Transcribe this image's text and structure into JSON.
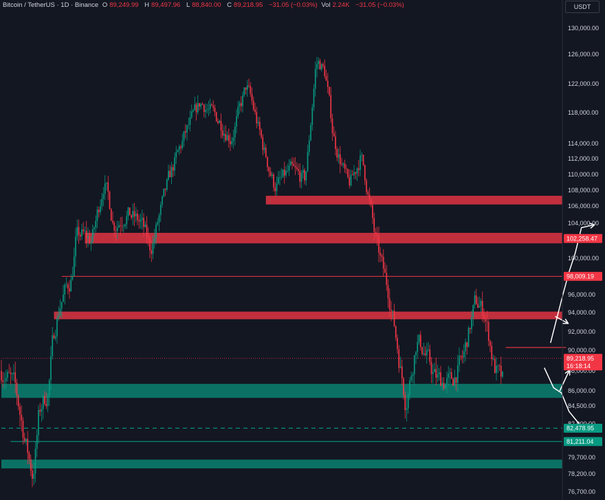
{
  "header": {
    "title": "Bitcoin / TetherUS · 1D · Binance",
    "o_label": "O",
    "o": "89,249.99",
    "h_label": "H",
    "h": "89,497.96",
    "l_label": "L",
    "l": "88,840.00",
    "c_label": "C",
    "c": "89,218.95",
    "change": "−31.05 (−0.03%)",
    "vol_label": "Vol",
    "vol": "2.24K",
    "vol_change": "−31.05 (−0.03%)"
  },
  "currency_button": "USDT",
  "chart_data": {
    "type": "candlestick",
    "title": "Bitcoin / TetherUS · 1D · Binance",
    "y_ticks": [
      {
        "label": "130,000.00",
        "value": 130000
      },
      {
        "label": "126,000.00",
        "value": 126000
      },
      {
        "label": "122,000.00",
        "value": 122000
      },
      {
        "label": "118,000.00",
        "value": 118000
      },
      {
        "label": "114,000.00",
        "value": 114000
      },
      {
        "label": "112,000.00",
        "value": 112000
      },
      {
        "label": "110,000.00",
        "value": 110000
      },
      {
        "label": "108,000.00",
        "value": 108000
      },
      {
        "label": "106,000.00",
        "value": 106000
      },
      {
        "label": "104,000.00",
        "value": 104000
      },
      {
        "label": "100,000.00",
        "value": 100000
      },
      {
        "label": "96,000.00",
        "value": 96000
      },
      {
        "label": "94,000.00",
        "value": 94000
      },
      {
        "label": "92,000.00",
        "value": 92000
      },
      {
        "label": "90,000.00",
        "value": 90000
      },
      {
        "label": "88,000.00",
        "value": 88000
      },
      {
        "label": "86,000.00",
        "value": 86000
      },
      {
        "label": "84,500.00",
        "value": 84500
      },
      {
        "label": "82,900.00",
        "value": 82900
      },
      {
        "label": "79,700.00",
        "value": 79700
      },
      {
        "label": "78,200.00",
        "value": 78200
      },
      {
        "label": "76,700.00",
        "value": 76700
      }
    ],
    "price_labels": [
      {
        "label": "102,258.47",
        "value": 102258.47,
        "color": "#f23645"
      },
      {
        "label": "98,009.19",
        "value": 98009.19,
        "color": "#f23645"
      },
      {
        "label": "89,218.95",
        "value": 89218.95,
        "color": "#f23645",
        "sub": "16:18:14"
      },
      {
        "label": "82,478.95",
        "value": 82478.95,
        "color": "#089981"
      },
      {
        "label": "81,211.04",
        "value": 81211.04,
        "color": "#089981"
      }
    ],
    "zones": [
      {
        "type": "resistance",
        "from": 106200,
        "to": 107300,
        "x_start_index": 171,
        "color": "#f23645"
      },
      {
        "type": "resistance",
        "from": 101700,
        "to": 102900,
        "x_start_index": 54,
        "color": "#f23645"
      },
      {
        "type": "resistance",
        "from": 93300,
        "to": 94100,
        "x_start_index": 34,
        "color": "#f23645"
      },
      {
        "type": "support",
        "from": 85300,
        "to": 86700,
        "x_start_index": 0,
        "color": "#089981"
      },
      {
        "type": "support",
        "from": 78700,
        "to": 79500,
        "x_start_index": 0,
        "color": "#089981"
      }
    ],
    "lines": [
      {
        "value": 98009.19,
        "style": "solid",
        "color": "#f23645",
        "x_start_index": 39
      },
      {
        "value": 82478.95,
        "style": "dashed",
        "color": "#089981",
        "x_start_index": 0
      },
      {
        "value": 81211.04,
        "style": "solid",
        "color": "#089981",
        "x_start_index": 6
      },
      {
        "value": 89218.95,
        "style": "dotted",
        "color": "#f23645",
        "x_start_index": 0
      },
      {
        "value": 90300,
        "style": "solid",
        "color": "#f23645",
        "x_start_index": 326,
        "x_end_index": 365
      }
    ],
    "projections": [
      {
        "name": "bullish",
        "color": "#ffffff",
        "points": [
          [
            355,
            90800
          ],
          [
            363,
            96000
          ],
          [
            367,
            98500
          ],
          [
            371,
            100600
          ],
          [
            375,
            103500
          ],
          [
            383,
            103800
          ]
        ]
      },
      {
        "name": "bearish",
        "color": "#ffffff",
        "points": [
          [
            351,
            88300
          ],
          [
            357,
            86300
          ],
          [
            362,
            85800
          ],
          [
            367,
            84000
          ],
          [
            374,
            82800
          ],
          [
            381,
            82600
          ]
        ]
      },
      {
        "name": "bounce-down",
        "color": "#ffffff",
        "points": [
          [
            358,
            93600
          ],
          [
            366,
            92900
          ]
        ]
      },
      {
        "name": "bounce-up",
        "color": "#ffffff",
        "points": [
          [
            361,
            86000
          ],
          [
            367,
            88000
          ]
        ]
      }
    ],
    "candles": []
  }
}
